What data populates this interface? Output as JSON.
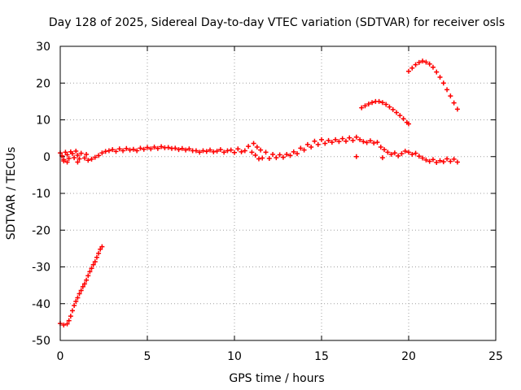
{
  "chart_data": {
    "type": "scatter",
    "title": "Day 128 of 2025, Sidereal Day-to-day VTEC variation (SDTVAR) for receiver osls",
    "xlabel": "GPS time / hours",
    "ylabel": "SDTVAR / TECUs",
    "xlim": [
      0,
      25
    ],
    "ylim": [
      -50,
      30
    ],
    "xticks": [
      0,
      5,
      10,
      15,
      20,
      25
    ],
    "yticks": [
      -50,
      -40,
      -30,
      -20,
      -10,
      0,
      10,
      20,
      30
    ],
    "grid": true,
    "marker": "+",
    "series": [
      {
        "name": "main-band",
        "color": "#ff0000",
        "points": [
          [
            0.0,
            1.0
          ],
          [
            0.1,
            0.2
          ],
          [
            0.2,
            -0.8
          ],
          [
            0.3,
            1.2
          ],
          [
            0.4,
            0.5
          ],
          [
            0.5,
            -0.5
          ],
          [
            0.6,
            1.3
          ],
          [
            0.7,
            0.8
          ],
          [
            0.8,
            -0.3
          ],
          [
            0.9,
            1.5
          ],
          [
            1.0,
            0.4
          ],
          [
            1.1,
            -0.6
          ],
          [
            1.2,
            0.9
          ],
          [
            1.4,
            -0.4
          ],
          [
            1.5,
            0.6
          ],
          [
            1.6,
            -1.0
          ],
          [
            1.8,
            -0.7
          ],
          [
            2.0,
            -0.2
          ],
          [
            2.2,
            0.3
          ],
          [
            2.4,
            1.0
          ],
          [
            2.6,
            1.4
          ],
          [
            2.8,
            1.6
          ],
          [
            3.0,
            1.9
          ],
          [
            3.2,
            1.4
          ],
          [
            3.4,
            2.1
          ],
          [
            3.6,
            1.6
          ],
          [
            3.8,
            2.2
          ],
          [
            4.0,
            1.8
          ],
          [
            4.2,
            2.0
          ],
          [
            4.4,
            1.6
          ],
          [
            4.6,
            2.3
          ],
          [
            4.8,
            2.0
          ],
          [
            5.0,
            2.5
          ],
          [
            5.2,
            2.1
          ],
          [
            5.4,
            2.6
          ],
          [
            5.6,
            2.2
          ],
          [
            5.8,
            2.7
          ],
          [
            6.0,
            2.4
          ],
          [
            6.2,
            2.5
          ],
          [
            6.4,
            2.2
          ],
          [
            6.6,
            2.3
          ],
          [
            6.8,
            1.9
          ],
          [
            7.0,
            2.2
          ],
          [
            7.2,
            1.8
          ],
          [
            7.4,
            2.1
          ],
          [
            7.6,
            1.6
          ],
          [
            7.8,
            1.6
          ],
          [
            8.0,
            1.2
          ],
          [
            8.2,
            1.6
          ],
          [
            8.4,
            1.4
          ],
          [
            8.6,
            1.8
          ],
          [
            8.8,
            1.3
          ],
          [
            9.0,
            1.5
          ],
          [
            9.2,
            1.9
          ],
          [
            9.4,
            1.2
          ],
          [
            9.6,
            1.6
          ],
          [
            9.8,
            1.8
          ],
          [
            10.0,
            1.1
          ],
          [
            10.2,
            2.1
          ],
          [
            10.4,
            1.3
          ],
          [
            10.6,
            1.6
          ],
          [
            10.8,
            2.8
          ],
          [
            11.0,
            1.2
          ],
          [
            11.1,
            3.6
          ],
          [
            11.2,
            0.4
          ],
          [
            11.3,
            2.6
          ],
          [
            11.4,
            -0.6
          ],
          [
            11.5,
            1.8
          ],
          [
            11.6,
            -0.4
          ],
          [
            11.8,
            1.2
          ],
          [
            12.0,
            -0.5
          ],
          [
            12.2,
            0.6
          ],
          [
            12.4,
            -0.3
          ],
          [
            12.6,
            0.5
          ],
          [
            12.8,
            -0.2
          ],
          [
            13.0,
            0.6
          ],
          [
            13.2,
            0.3
          ],
          [
            13.4,
            1.3
          ],
          [
            13.6,
            0.8
          ],
          [
            13.8,
            2.3
          ],
          [
            14.0,
            1.8
          ],
          [
            14.2,
            3.3
          ],
          [
            14.4,
            2.6
          ],
          [
            14.6,
            4.2
          ],
          [
            14.8,
            3.3
          ],
          [
            15.0,
            4.6
          ],
          [
            15.2,
            3.6
          ],
          [
            15.4,
            4.4
          ],
          [
            15.6,
            3.9
          ],
          [
            15.8,
            4.6
          ],
          [
            16.0,
            4.1
          ],
          [
            16.2,
            4.9
          ],
          [
            16.4,
            4.2
          ],
          [
            16.6,
            5.1
          ],
          [
            16.8,
            4.4
          ],
          [
            17.0,
            5.3
          ],
          [
            17.2,
            4.6
          ],
          [
            17.4,
            4.1
          ],
          [
            17.6,
            3.8
          ],
          [
            17.8,
            4.3
          ],
          [
            18.0,
            3.7
          ],
          [
            18.2,
            3.9
          ],
          [
            18.4,
            2.6
          ],
          [
            18.6,
            1.9
          ],
          [
            18.8,
            1.2
          ],
          [
            19.0,
            0.6
          ],
          [
            19.2,
            1.0
          ],
          [
            19.4,
            0.2
          ],
          [
            19.6,
            0.8
          ],
          [
            19.8,
            1.5
          ],
          [
            20.0,
            1.2
          ],
          [
            20.2,
            0.6
          ],
          [
            20.4,
            0.9
          ],
          [
            20.6,
            0.1
          ],
          [
            20.8,
            -0.4
          ],
          [
            21.0,
            -0.9
          ],
          [
            21.2,
            -1.3
          ],
          [
            21.4,
            -0.8
          ],
          [
            21.6,
            -1.6
          ],
          [
            21.8,
            -1.1
          ],
          [
            22.0,
            -1.4
          ],
          [
            22.2,
            -0.6
          ],
          [
            22.4,
            -1.3
          ],
          [
            22.6,
            -0.7
          ],
          [
            22.8,
            -1.5
          ],
          [
            17.0,
            0.0
          ],
          [
            18.5,
            -0.3
          ],
          [
            0.2,
            -1.2
          ],
          [
            0.4,
            -1.5
          ],
          [
            1.0,
            -1.5
          ]
        ]
      },
      {
        "name": "early-ramp",
        "color": "#ff0000",
        "points": [
          [
            0.0,
            -45.4
          ],
          [
            0.2,
            -45.8
          ],
          [
            0.4,
            -45.5
          ],
          [
            0.5,
            -44.6
          ],
          [
            0.6,
            -43.4
          ],
          [
            0.7,
            -41.9
          ],
          [
            0.8,
            -40.5
          ],
          [
            0.9,
            -39.4
          ],
          [
            1.0,
            -38.4
          ],
          [
            1.1,
            -37.3
          ],
          [
            1.2,
            -36.4
          ],
          [
            1.3,
            -35.4
          ],
          [
            1.4,
            -34.6
          ],
          [
            1.5,
            -33.6
          ],
          [
            1.6,
            -32.4
          ],
          [
            1.7,
            -31.3
          ],
          [
            1.8,
            -30.4
          ],
          [
            1.9,
            -29.4
          ],
          [
            2.0,
            -28.6
          ],
          [
            2.1,
            -27.4
          ],
          [
            2.2,
            -26.3
          ],
          [
            2.3,
            -25.2
          ],
          [
            2.4,
            -24.5
          ]
        ]
      },
      {
        "name": "late-arc",
        "color": "#ff0000",
        "points": [
          [
            17.3,
            13.3
          ],
          [
            17.5,
            13.8
          ],
          [
            17.7,
            14.3
          ],
          [
            17.9,
            14.7
          ],
          [
            18.1,
            15.0
          ],
          [
            18.3,
            15.0
          ],
          [
            18.5,
            14.7
          ],
          [
            18.7,
            14.2
          ],
          [
            18.9,
            13.5
          ],
          [
            19.1,
            12.8
          ],
          [
            19.3,
            12.0
          ],
          [
            19.5,
            11.2
          ],
          [
            19.7,
            10.3
          ],
          [
            19.9,
            9.3
          ],
          [
            20.0,
            8.9
          ]
        ]
      },
      {
        "name": "late-peak",
        "color": "#ff0000",
        "points": [
          [
            20.0,
            23.2
          ],
          [
            20.2,
            24.1
          ],
          [
            20.4,
            25.0
          ],
          [
            20.6,
            25.6
          ],
          [
            20.8,
            26.0
          ],
          [
            21.0,
            25.7
          ],
          [
            21.2,
            25.2
          ],
          [
            21.4,
            24.3
          ],
          [
            21.6,
            23.0
          ],
          [
            21.8,
            21.6
          ],
          [
            22.0,
            20.0
          ],
          [
            22.2,
            18.2
          ],
          [
            22.4,
            16.5
          ],
          [
            22.6,
            14.6
          ],
          [
            22.8,
            12.9
          ]
        ]
      }
    ]
  }
}
